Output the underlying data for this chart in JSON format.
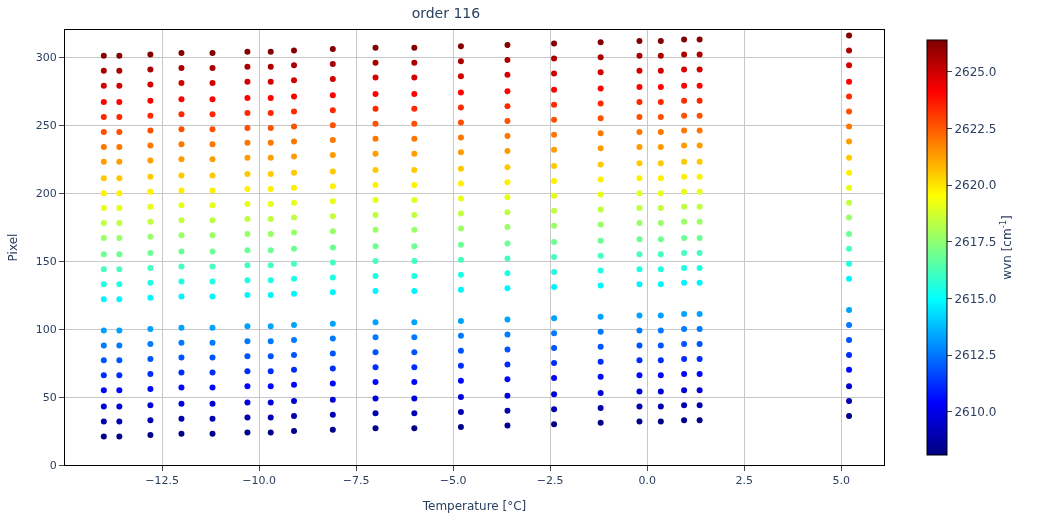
{
  "chart_data": {
    "type": "scatter",
    "title": "order 116",
    "xlabel": "Temperature [°C]",
    "ylabel": "Pixel",
    "clabel": "wvn [cm$^{-1}$]",
    "x": [
      -14.0,
      -13.6,
      -12.8,
      -12.0,
      -11.2,
      -10.3,
      -9.7,
      -9.1,
      -8.1,
      -7.0,
      -6.0,
      -4.8,
      -3.6,
      -2.4,
      -1.2,
      -0.2,
      0.35,
      0.95,
      1.35,
      5.2
    ],
    "xlim": [
      -15.0,
      6.1
    ],
    "xticks": [
      {
        "value": -12.5,
        "label": "−12.5"
      },
      {
        "value": -10,
        "label": "−10.0"
      },
      {
        "value": -7.5,
        "label": "−7.5"
      },
      {
        "value": -5,
        "label": "−5.0"
      },
      {
        "value": -2.5,
        "label": "−2.5"
      },
      {
        "value": 0,
        "label": "0.0"
      },
      {
        "value": 2.5,
        "label": "2.5"
      },
      {
        "value": 5,
        "label": "5.0"
      }
    ],
    "ylim": [
      0,
      320
    ],
    "yticks": [
      0,
      50,
      100,
      150,
      200,
      250,
      300
    ],
    "clim": [
      2608.1,
      2626.4
    ],
    "cticks": [
      {
        "value": 2610,
        "label": "2610.0"
      },
      {
        "value": 2612.5,
        "label": "2612.5"
      },
      {
        "value": 2615,
        "label": "2615.0"
      },
      {
        "value": 2617.5,
        "label": "2617.5"
      },
      {
        "value": 2620,
        "label": "2620.0"
      },
      {
        "value": 2622.5,
        "label": "2622.5"
      },
      {
        "value": 2625,
        "label": "2625.0"
      }
    ],
    "grid": true,
    "marker": "circle",
    "series": [
      {
        "values": [
          21,
          21,
          22,
          23,
          23,
          24,
          24,
          25,
          26,
          27,
          27,
          28,
          29,
          30,
          31,
          32,
          32,
          33,
          33,
          36
        ],
        "cvalues": [
          2608.3,
          2608.3,
          2608.3,
          2608.3,
          2608.3,
          2608.3,
          2608.3,
          2608.3,
          2608.3,
          2608.3,
          2608.3,
          2608.3,
          2608.3,
          2608.3,
          2608.3,
          2608.3,
          2608.3,
          2608.3,
          2608.3,
          2608.3
        ]
      },
      {
        "values": [
          32,
          32,
          33,
          34,
          34,
          35,
          35,
          36,
          37,
          38,
          38,
          39,
          40,
          41,
          42,
          43,
          43,
          44,
          44,
          47
        ],
        "cvalues": [
          2609.0,
          2609.0,
          2609.0,
          2609.0,
          2609.0,
          2609.0,
          2609.0,
          2609.0,
          2609.0,
          2609.0,
          2609.0,
          2609.0,
          2609.0,
          2609.0,
          2609.0,
          2609.0,
          2609.0,
          2609.0,
          2609.0,
          2609.0
        ]
      },
      {
        "values": [
          43,
          43,
          44,
          45,
          45,
          46,
          46,
          47,
          48,
          49,
          49,
          50,
          51,
          52,
          53,
          54,
          54,
          55,
          55,
          58
        ],
        "cvalues": [
          2609.7,
          2609.7,
          2609.7,
          2609.7,
          2609.7,
          2609.7,
          2609.7,
          2609.7,
          2609.7,
          2609.7,
          2609.7,
          2609.7,
          2609.7,
          2609.7,
          2609.7,
          2609.7,
          2609.7,
          2609.7,
          2609.7,
          2609.7
        ]
      },
      {
        "values": [
          55,
          55,
          56,
          57,
          57,
          58,
          58,
          59,
          60,
          61,
          61,
          62,
          63,
          64,
          65,
          66,
          66,
          67,
          67,
          70
        ],
        "cvalues": [
          2610.5,
          2610.5,
          2610.5,
          2610.5,
          2610.5,
          2610.5,
          2610.5,
          2610.5,
          2610.5,
          2610.5,
          2610.5,
          2610.5,
          2610.5,
          2610.5,
          2610.5,
          2610.5,
          2610.5,
          2610.5,
          2610.5,
          2610.5
        ]
      },
      {
        "values": [
          66,
          66,
          67,
          68,
          68,
          69,
          69,
          70,
          71,
          72,
          72,
          73,
          74,
          75,
          76,
          77,
          77,
          78,
          78,
          81
        ],
        "cvalues": [
          2611.2,
          2611.2,
          2611.2,
          2611.2,
          2611.2,
          2611.2,
          2611.2,
          2611.2,
          2611.2,
          2611.2,
          2611.2,
          2611.2,
          2611.2,
          2611.2,
          2611.2,
          2611.2,
          2611.2,
          2611.2,
          2611.2,
          2611.2
        ]
      },
      {
        "values": [
          77,
          77,
          78,
          79,
          79,
          80,
          80,
          81,
          82,
          83,
          83,
          84,
          85,
          86,
          87,
          88,
          88,
          89,
          89,
          92
        ],
        "cvalues": [
          2611.9,
          2611.9,
          2611.9,
          2611.9,
          2611.9,
          2611.9,
          2611.9,
          2611.9,
          2611.9,
          2611.9,
          2611.9,
          2611.9,
          2611.9,
          2611.9,
          2611.9,
          2611.9,
          2611.9,
          2611.9,
          2611.9,
          2611.9
        ]
      },
      {
        "values": [
          88,
          88,
          89,
          90,
          90,
          91,
          91,
          92,
          93,
          94,
          94,
          95,
          96,
          97,
          98,
          99,
          99,
          100,
          100,
          103
        ],
        "cvalues": [
          2612.6,
          2612.6,
          2612.6,
          2612.6,
          2612.6,
          2612.6,
          2612.6,
          2612.6,
          2612.6,
          2612.6,
          2612.6,
          2612.6,
          2612.6,
          2612.6,
          2612.6,
          2612.6,
          2612.6,
          2612.6,
          2612.6,
          2612.6
        ]
      },
      {
        "values": [
          99,
          99,
          100,
          101,
          101,
          102,
          102,
          103,
          104,
          105,
          105,
          106,
          107,
          108,
          109,
          110,
          110,
          111,
          111,
          114
        ],
        "cvalues": [
          2613.3,
          2613.3,
          2613.3,
          2613.3,
          2613.3,
          2613.3,
          2613.3,
          2613.3,
          2613.3,
          2613.3,
          2613.3,
          2613.3,
          2613.3,
          2613.3,
          2613.3,
          2613.3,
          2613.3,
          2613.3,
          2613.3,
          2613.3
        ]
      },
      {
        "values": [
          122,
          122,
          123,
          124,
          124,
          125,
          125,
          126,
          127,
          128,
          128,
          129,
          130,
          131,
          132,
          133,
          133,
          134,
          134,
          137
        ],
        "cvalues": [
          2614.8,
          2614.8,
          2614.8,
          2614.8,
          2614.8,
          2614.8,
          2614.8,
          2614.8,
          2614.8,
          2614.8,
          2614.8,
          2614.8,
          2614.8,
          2614.8,
          2614.8,
          2614.8,
          2614.8,
          2614.8,
          2614.8,
          2614.8
        ]
      },
      {
        "values": [
          133,
          133,
          134,
          135,
          135,
          136,
          136,
          137,
          138,
          139,
          139,
          140,
          141,
          142,
          143,
          144,
          144,
          145,
          145,
          148
        ],
        "cvalues": [
          2615.5,
          2615.5,
          2615.5,
          2615.5,
          2615.5,
          2615.5,
          2615.5,
          2615.5,
          2615.5,
          2615.5,
          2615.5,
          2615.5,
          2615.5,
          2615.5,
          2615.5,
          2615.5,
          2615.5,
          2615.5,
          2615.5,
          2615.5
        ]
      },
      {
        "values": [
          144,
          144,
          145,
          146,
          146,
          147,
          147,
          148,
          149,
          150,
          150,
          151,
          152,
          153,
          154,
          155,
          155,
          156,
          156,
          159
        ],
        "cvalues": [
          2616.2,
          2616.2,
          2616.2,
          2616.2,
          2616.2,
          2616.2,
          2616.2,
          2616.2,
          2616.2,
          2616.2,
          2616.2,
          2616.2,
          2616.2,
          2616.2,
          2616.2,
          2616.2,
          2616.2,
          2616.2,
          2616.2,
          2616.2
        ]
      },
      {
        "values": [
          155,
          155,
          156,
          157,
          157,
          158,
          158,
          159,
          160,
          161,
          161,
          162,
          163,
          164,
          165,
          166,
          166,
          167,
          167,
          170
        ],
        "cvalues": [
          2616.9,
          2616.9,
          2616.9,
          2616.9,
          2616.9,
          2616.9,
          2616.9,
          2616.9,
          2616.9,
          2616.9,
          2616.9,
          2616.9,
          2616.9,
          2616.9,
          2616.9,
          2616.9,
          2616.9,
          2616.9,
          2616.9,
          2616.9
        ]
      },
      {
        "values": [
          167,
          167,
          168,
          169,
          169,
          170,
          170,
          171,
          172,
          173,
          173,
          174,
          175,
          176,
          177,
          178,
          178,
          179,
          179,
          182
        ],
        "cvalues": [
          2617.7,
          2617.7,
          2617.7,
          2617.7,
          2617.7,
          2617.7,
          2617.7,
          2617.7,
          2617.7,
          2617.7,
          2617.7,
          2617.7,
          2617.7,
          2617.7,
          2617.7,
          2617.7,
          2617.7,
          2617.7,
          2617.7,
          2617.7
        ]
      },
      {
        "values": [
          178,
          178,
          179,
          180,
          180,
          181,
          181,
          182,
          183,
          184,
          184,
          185,
          186,
          187,
          188,
          189,
          189,
          190,
          190,
          193
        ],
        "cvalues": [
          2618.4,
          2618.4,
          2618.4,
          2618.4,
          2618.4,
          2618.4,
          2618.4,
          2618.4,
          2618.4,
          2618.4,
          2618.4,
          2618.4,
          2618.4,
          2618.4,
          2618.4,
          2618.4,
          2618.4,
          2618.4,
          2618.4,
          2618.4
        ]
      },
      {
        "values": [
          189,
          189,
          190,
          191,
          191,
          192,
          192,
          193,
          194,
          195,
          195,
          196,
          197,
          198,
          199,
          200,
          200,
          201,
          201,
          204
        ],
        "cvalues": [
          2619.1,
          2619.1,
          2619.1,
          2619.1,
          2619.1,
          2619.1,
          2619.1,
          2619.1,
          2619.1,
          2619.1,
          2619.1,
          2619.1,
          2619.1,
          2619.1,
          2619.1,
          2619.1,
          2619.1,
          2619.1,
          2619.1,
          2619.1
        ]
      },
      {
        "values": [
          200,
          200,
          201,
          202,
          202,
          203,
          203,
          204,
          205,
          206,
          206,
          207,
          208,
          209,
          210,
          211,
          211,
          212,
          212,
          215
        ],
        "cvalues": [
          2619.8,
          2619.8,
          2619.8,
          2619.8,
          2619.8,
          2619.8,
          2619.8,
          2619.8,
          2619.8,
          2619.8,
          2619.8,
          2619.8,
          2619.8,
          2619.8,
          2619.8,
          2619.8,
          2619.8,
          2619.8,
          2619.8,
          2619.8
        ]
      },
      {
        "values": [
          211,
          211,
          212,
          213,
          213,
          214,
          214,
          215,
          216,
          217,
          217,
          218,
          219,
          220,
          221,
          222,
          222,
          223,
          223,
          226
        ],
        "cvalues": [
          2620.5,
          2620.5,
          2620.5,
          2620.5,
          2620.5,
          2620.5,
          2620.5,
          2620.5,
          2620.5,
          2620.5,
          2620.5,
          2620.5,
          2620.5,
          2620.5,
          2620.5,
          2620.5,
          2620.5,
          2620.5,
          2620.5,
          2620.5
        ]
      },
      {
        "values": [
          223,
          223,
          224,
          225,
          225,
          226,
          226,
          227,
          228,
          229,
          229,
          230,
          231,
          232,
          233,
          234,
          234,
          235,
          235,
          238
        ],
        "cvalues": [
          2621.3,
          2621.3,
          2621.3,
          2621.3,
          2621.3,
          2621.3,
          2621.3,
          2621.3,
          2621.3,
          2621.3,
          2621.3,
          2621.3,
          2621.3,
          2621.3,
          2621.3,
          2621.3,
          2621.3,
          2621.3,
          2621.3,
          2621.3
        ]
      },
      {
        "values": [
          234,
          234,
          235,
          236,
          236,
          237,
          237,
          238,
          239,
          240,
          240,
          241,
          242,
          243,
          244,
          245,
          245,
          246,
          246,
          249
        ],
        "cvalues": [
          2622.0,
          2622.0,
          2622.0,
          2622.0,
          2622.0,
          2622.0,
          2622.0,
          2622.0,
          2622.0,
          2622.0,
          2622.0,
          2622.0,
          2622.0,
          2622.0,
          2622.0,
          2622.0,
          2622.0,
          2622.0,
          2622.0,
          2622.0
        ]
      },
      {
        "values": [
          245,
          245,
          246,
          247,
          247,
          248,
          248,
          249,
          250,
          251,
          251,
          252,
          253,
          254,
          255,
          256,
          256,
          257,
          257,
          260
        ],
        "cvalues": [
          2622.7,
          2622.7,
          2622.7,
          2622.7,
          2622.7,
          2622.7,
          2622.7,
          2622.7,
          2622.7,
          2622.7,
          2622.7,
          2622.7,
          2622.7,
          2622.7,
          2622.7,
          2622.7,
          2622.7,
          2622.7,
          2622.7,
          2622.7
        ]
      },
      {
        "values": [
          256,
          256,
          257,
          258,
          258,
          259,
          259,
          260,
          261,
          262,
          262,
          263,
          264,
          265,
          266,
          267,
          267,
          268,
          268,
          271
        ],
        "cvalues": [
          2623.4,
          2623.4,
          2623.4,
          2623.4,
          2623.4,
          2623.4,
          2623.4,
          2623.4,
          2623.4,
          2623.4,
          2623.4,
          2623.4,
          2623.4,
          2623.4,
          2623.4,
          2623.4,
          2623.4,
          2623.4,
          2623.4,
          2623.4
        ]
      },
      {
        "values": [
          267,
          267,
          268,
          269,
          269,
          270,
          270,
          271,
          272,
          273,
          273,
          274,
          275,
          276,
          277,
          278,
          278,
          279,
          279,
          282
        ],
        "cvalues": [
          2624.1,
          2624.1,
          2624.1,
          2624.1,
          2624.1,
          2624.1,
          2624.1,
          2624.1,
          2624.1,
          2624.1,
          2624.1,
          2624.1,
          2624.1,
          2624.1,
          2624.1,
          2624.1,
          2624.1,
          2624.1,
          2624.1,
          2624.1
        ]
      },
      {
        "values": [
          279,
          279,
          280,
          281,
          281,
          282,
          282,
          283,
          284,
          285,
          285,
          286,
          287,
          288,
          289,
          290,
          290,
          291,
          291,
          294
        ],
        "cvalues": [
          2624.9,
          2624.9,
          2624.9,
          2624.9,
          2624.9,
          2624.9,
          2624.9,
          2624.9,
          2624.9,
          2624.9,
          2624.9,
          2624.9,
          2624.9,
          2624.9,
          2624.9,
          2624.9,
          2624.9,
          2624.9,
          2624.9,
          2624.9
        ]
      },
      {
        "values": [
          290,
          290,
          291,
          292,
          292,
          293,
          293,
          294,
          295,
          296,
          296,
          297,
          298,
          299,
          300,
          301,
          301,
          302,
          302,
          305
        ],
        "cvalues": [
          2625.6,
          2625.6,
          2625.6,
          2625.6,
          2625.6,
          2625.6,
          2625.6,
          2625.6,
          2625.6,
          2625.6,
          2625.6,
          2625.6,
          2625.6,
          2625.6,
          2625.6,
          2625.6,
          2625.6,
          2625.6,
          2625.6,
          2625.6
        ]
      },
      {
        "values": [
          301,
          301,
          302,
          303,
          303,
          304,
          304,
          305,
          306,
          307,
          307,
          308,
          309,
          310,
          311,
          312,
          312,
          313,
          313,
          316
        ],
        "cvalues": [
          2626.3,
          2626.3,
          2626.3,
          2626.3,
          2626.3,
          2626.3,
          2626.3,
          2626.3,
          2626.3,
          2626.3,
          2626.3,
          2626.3,
          2626.3,
          2626.3,
          2626.3,
          2626.3,
          2626.3,
          2626.3,
          2626.3,
          2626.3
        ]
      }
    ]
  }
}
